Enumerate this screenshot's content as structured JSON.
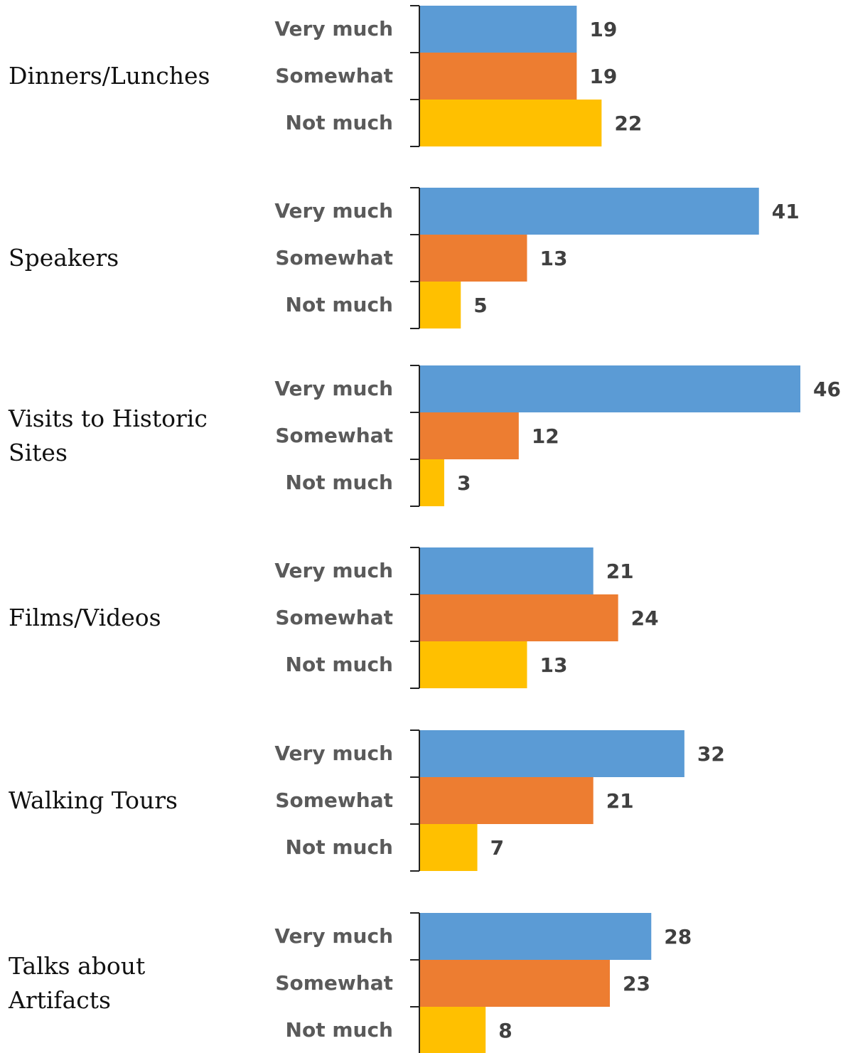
{
  "chart_data": {
    "type": "bar",
    "orientation": "horizontal",
    "categories": [
      "Very much",
      "Somewhat",
      "Not much"
    ],
    "colors": {
      "Very much": "#5b9bd5",
      "Somewhat": "#ed7d31",
      "Not much": "#ffc000"
    },
    "xlim": [
      0,
      46
    ],
    "grid": false,
    "groups": [
      {
        "label": "Dinners/Lunches",
        "values": [
          19,
          19,
          22
        ]
      },
      {
        "label": "Speakers",
        "values": [
          41,
          13,
          5
        ]
      },
      {
        "label": "Visits to Historic Sites",
        "values": [
          46,
          12,
          3
        ]
      },
      {
        "label": "Films/Videos",
        "values": [
          21,
          24,
          13
        ]
      },
      {
        "label": "Walking Tours",
        "values": [
          32,
          21,
          7
        ]
      },
      {
        "label": "Talks about Artifacts",
        "values": [
          28,
          23,
          8
        ]
      }
    ]
  }
}
